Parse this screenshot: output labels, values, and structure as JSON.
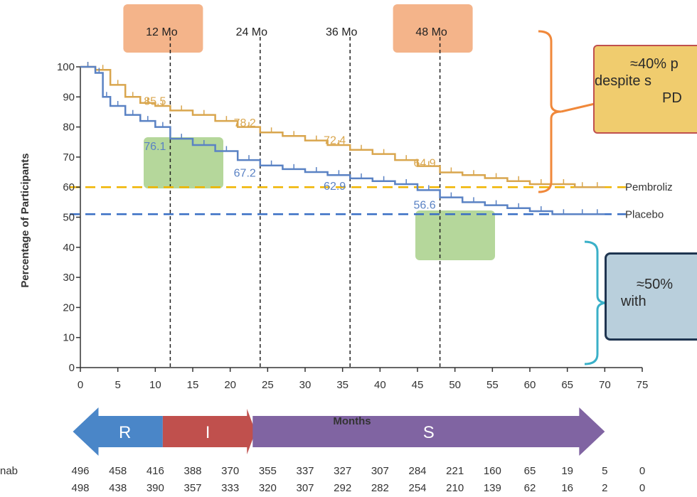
{
  "chart_data": {
    "type": "line",
    "title": "",
    "xlabel": "Months",
    "ylabel": "Percentage of Participants",
    "xlim": [
      0,
      75
    ],
    "ylim": [
      0,
      100
    ],
    "x_ticks": [
      "0",
      "5",
      "10",
      "15",
      "20",
      "25",
      "30",
      "35",
      "40",
      "45",
      "50",
      "55",
      "60",
      "65",
      "70",
      "75"
    ],
    "y_ticks": [
      "0",
      "10",
      "20",
      "30",
      "40",
      "50",
      "60",
      "70",
      "80",
      "90",
      "100"
    ],
    "series": [
      {
        "name": "Pembroliz",
        "color": "#d9a64e",
        "x": [
          0,
          2,
          4,
          6,
          8,
          10,
          12,
          15,
          18,
          21,
          24,
          27,
          30,
          33,
          36,
          39,
          42,
          45,
          48,
          51,
          54,
          57,
          60,
          63,
          66,
          68,
          70
        ],
        "y": [
          100,
          99,
          94,
          90,
          88,
          87,
          85.5,
          84,
          82,
          80,
          78.2,
          77,
          75.5,
          74,
          72.4,
          71,
          69,
          67,
          64.9,
          64,
          63,
          62,
          61,
          61,
          60,
          60,
          60
        ]
      },
      {
        "name": "Placebo",
        "color": "#5a82c4",
        "x": [
          0,
          2,
          3,
          4,
          6,
          8,
          10,
          12,
          15,
          18,
          21,
          24,
          27,
          30,
          33,
          36,
          39,
          42,
          45,
          48,
          51,
          54,
          57,
          60,
          63,
          66,
          68,
          70
        ],
        "y": [
          100,
          98,
          90,
          87,
          84,
          82,
          80,
          76.1,
          74,
          72,
          69,
          67.2,
          66,
          65,
          64,
          62.9,
          62,
          61,
          59,
          56.6,
          55,
          54,
          53,
          52,
          51,
          51,
          51,
          51
        ]
      }
    ],
    "data_labels": [
      {
        "series": 0,
        "x": 12,
        "y": 85.5,
        "text": "85.5"
      },
      {
        "series": 0,
        "x": 24,
        "y": 78.2,
        "text": "78.2"
      },
      {
        "series": 0,
        "x": 36,
        "y": 72.4,
        "text": "72.4"
      },
      {
        "series": 0,
        "x": 48,
        "y": 64.9,
        "text": "64.9"
      },
      {
        "series": 1,
        "x": 12,
        "y": 76.1,
        "text": "76.1"
      },
      {
        "series": 1,
        "x": 24,
        "y": 67.2,
        "text": "67.2"
      },
      {
        "series": 1,
        "x": 36,
        "y": 62.9,
        "text": "62.9"
      },
      {
        "series": 1,
        "x": 48,
        "y": 56.6,
        "text": "56.6"
      }
    ],
    "time_markers": [
      {
        "x": 12,
        "label": "12 Mo",
        "highlight": true
      },
      {
        "x": 24,
        "label": "24 Mo",
        "highlight": false
      },
      {
        "x": 36,
        "label": "36 Mo",
        "highlight": false
      },
      {
        "x": 48,
        "label": "48 Mo",
        "highlight": true
      }
    ],
    "reference_lines": [
      {
        "y": 60,
        "color": "#f0b400"
      },
      {
        "y": 51,
        "color": "#3a6fc4"
      }
    ],
    "phase_arrows": [
      {
        "label": "R",
        "from": -1,
        "to": 11,
        "color": "#4a86c8"
      },
      {
        "label": "I",
        "from": 11,
        "to": 23,
        "color": "#c0504d"
      },
      {
        "label": "S",
        "from": 23,
        "to": 70,
        "color": "#8064a2"
      }
    ],
    "risk_table": {
      "rows": [
        {
          "label": "nab",
          "values": [
            "496",
            "458",
            "416",
            "388",
            "370",
            "355",
            "337",
            "327",
            "307",
            "284",
            "221",
            "160",
            "65",
            "19",
            "5",
            "0"
          ]
        },
        {
          "label": "",
          "values": [
            "498",
            "438",
            "390",
            "357",
            "333",
            "320",
            "307",
            "292",
            "282",
            "254",
            "210",
            "139",
            "62",
            "16",
            "2",
            "0"
          ]
        }
      ]
    }
  },
  "callouts": {
    "top": [
      "≈40% p",
      "despite s",
      "PD"
    ],
    "bottom": [
      "≈50%",
      "with"
    ]
  },
  "colors": {
    "pembro": "#d9a64e",
    "placebo": "#5a82c4",
    "highlight_orange": "#f4b48a",
    "highlight_green": "#9cc97a",
    "bracket_orange": "#f0883a",
    "bracket_blue": "#3ab0c8"
  }
}
